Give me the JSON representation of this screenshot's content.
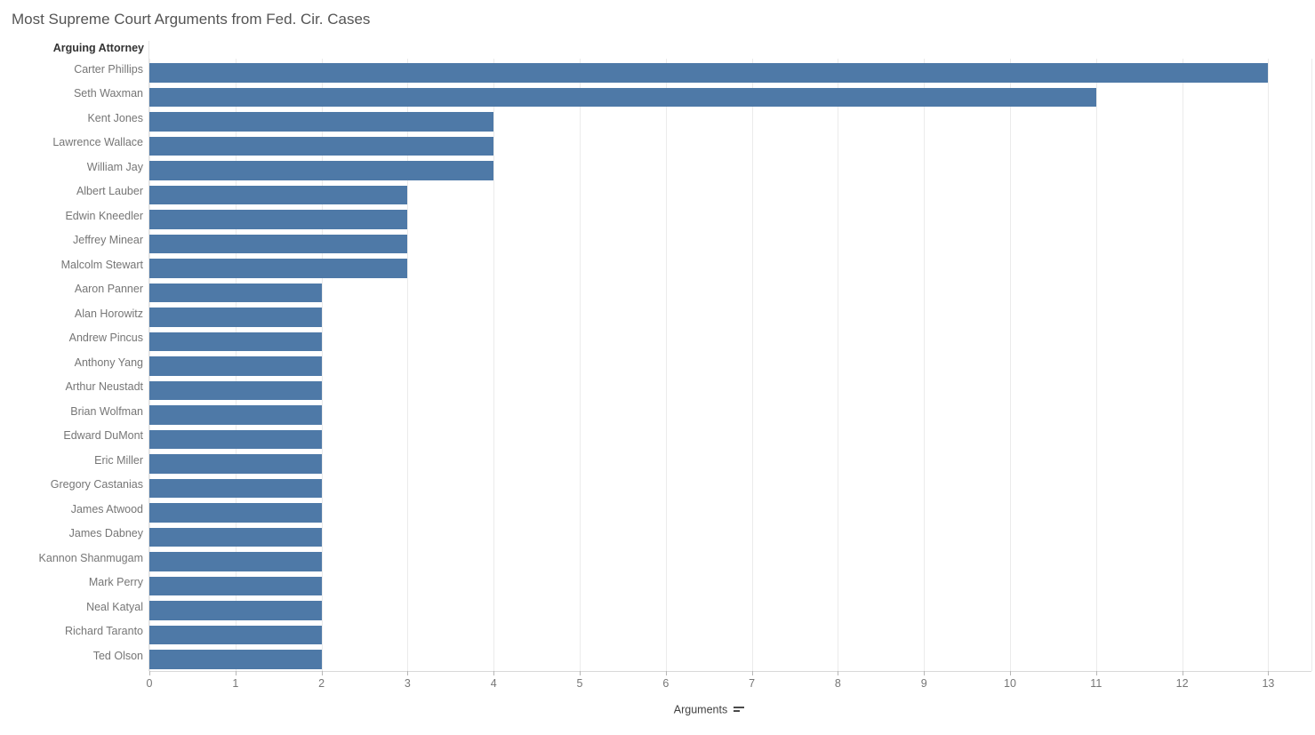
{
  "title": "Most Supreme Court Arguments from Fed. Cir. Cases",
  "row_header": "Arguing Attorney",
  "axis": {
    "label": "Arguments",
    "ticks": [
      0,
      1,
      2,
      3,
      4,
      5,
      6,
      7,
      8,
      9,
      10,
      11,
      12,
      13
    ],
    "sort_icon": "sort-descending"
  },
  "colors": {
    "bar": "#4e79a7",
    "grid": "#ebebeb",
    "axis_line": "#d9d9d9",
    "title_text": "#545454",
    "label_text": "#767676",
    "header_text": "#333333"
  },
  "chart_data": {
    "type": "bar",
    "orientation": "horizontal",
    "title": "Most Supreme Court Arguments from Fed. Cir. Cases",
    "xlabel": "Arguments",
    "ylabel": "Arguing Attorney",
    "xlim": [
      0,
      13.5
    ],
    "grid": true,
    "sort": "descending",
    "legend": "none",
    "categories": [
      "Carter Phillips",
      "Seth Waxman",
      "Kent Jones",
      "Lawrence Wallace",
      "William Jay",
      "Albert Lauber",
      "Edwin Kneedler",
      "Jeffrey Minear",
      "Malcolm Stewart",
      "Aaron Panner",
      "Alan Horowitz",
      "Andrew Pincus",
      "Anthony Yang",
      "Arthur Neustadt",
      "Brian Wolfman",
      "Edward DuMont",
      "Eric Miller",
      "Gregory Castanias",
      "James Atwood",
      "James Dabney",
      "Kannon Shanmugam",
      "Mark Perry",
      "Neal Katyal",
      "Richard Taranto",
      "Ted Olson"
    ],
    "values": [
      13,
      11,
      4,
      4,
      4,
      3,
      3,
      3,
      3,
      2,
      2,
      2,
      2,
      2,
      2,
      2,
      2,
      2,
      2,
      2,
      2,
      2,
      2,
      2,
      2
    ]
  }
}
